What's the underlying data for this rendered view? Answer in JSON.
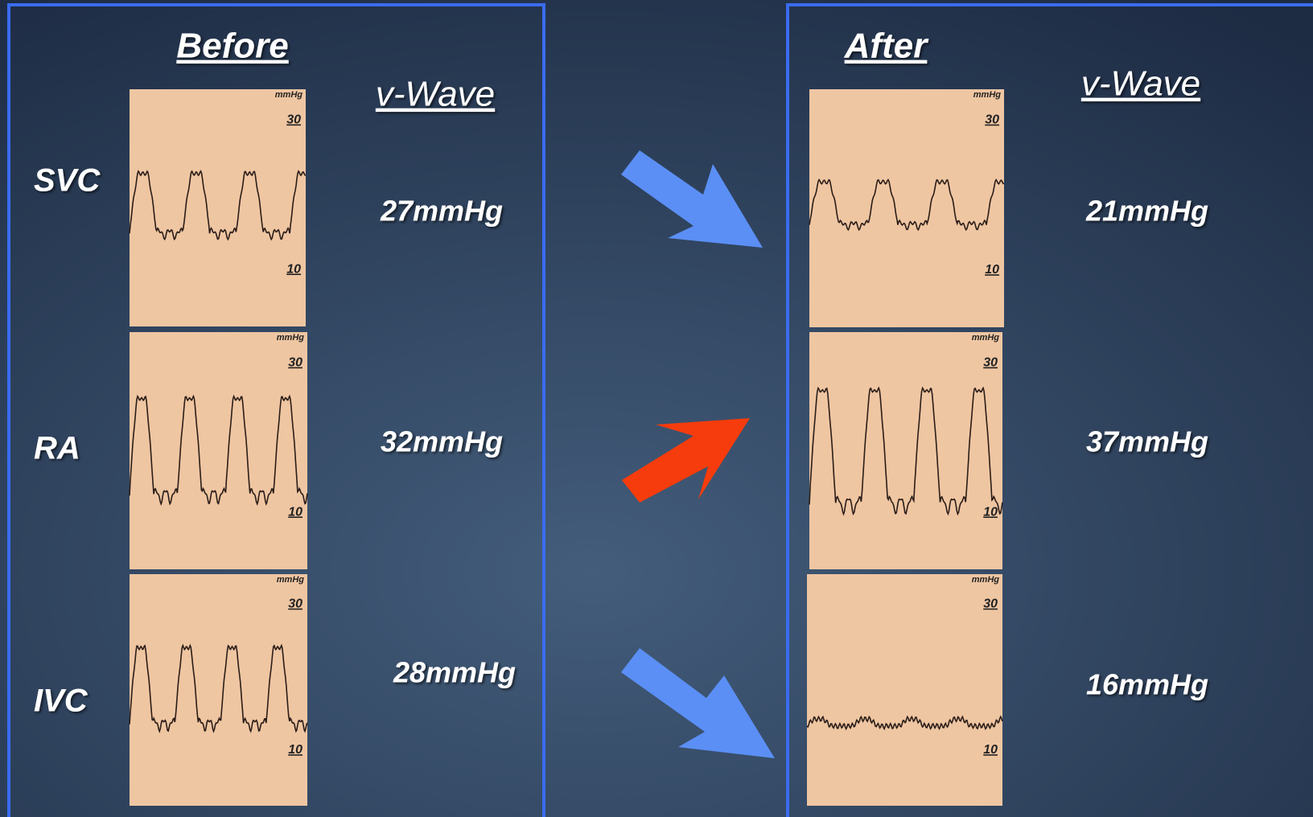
{
  "panels": [
    {
      "title": "Before",
      "column_header": "v-Wave",
      "rows": [
        {
          "label": "SVC",
          "value": "27mmHg",
          "trace": {
            "unit": "mmHg",
            "high": "30",
            "low": "10"
          }
        },
        {
          "label": "RA",
          "value": "32mmHg",
          "trace": {
            "unit": "mmHg",
            "high": "30",
            "low": "10"
          }
        },
        {
          "label": "IVC",
          "value": "28mmHg",
          "trace": {
            "unit": "mmHg",
            "high": "30",
            "low": "10"
          }
        }
      ]
    },
    {
      "title": "After",
      "column_header": "v-Wave",
      "rows": [
        {
          "value": "21mmHg",
          "trace": {
            "unit": "mmHg",
            "high": "30",
            "low": "10"
          }
        },
        {
          "value": "37mmHg",
          "trace": {
            "unit": "mmHg",
            "high": "30",
            "low": "10"
          }
        },
        {
          "value": "16mmHg",
          "trace": {
            "unit": "mmHg",
            "high": "30",
            "low": "10"
          }
        }
      ]
    }
  ]
}
